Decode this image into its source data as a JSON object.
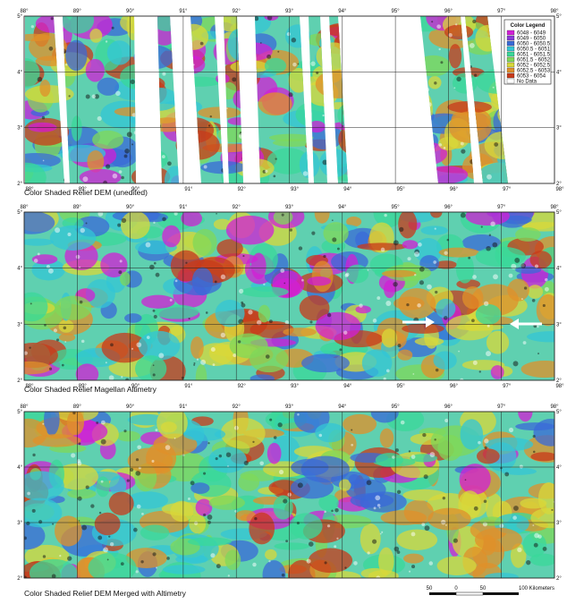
{
  "panels": [
    {
      "caption": "Color Shaded Relief DEM (unedited)",
      "lon_labels": [
        "88°",
        "89°",
        "90°",
        "91°",
        "92°",
        "93°",
        "94°",
        "95°",
        "96°",
        "97°",
        "98°"
      ],
      "lat_labels": [
        "5°",
        "4°",
        "3°",
        "2°"
      ]
    },
    {
      "caption": "Color Shaded Relief Magellan Altimetry",
      "lon_labels": [
        "88°",
        "89°",
        "90°",
        "91°",
        "92°",
        "93°",
        "94°",
        "95°",
        "96°",
        "97°",
        "98°"
      ],
      "lat_labels": [
        "5°",
        "4°",
        "3°",
        "2°"
      ]
    },
    {
      "caption": "Color Shaded Relief DEM Merged with Altimetry",
      "lon_labels": [
        "88°",
        "89°",
        "90°",
        "91°",
        "92°",
        "93°",
        "94°",
        "95°",
        "96°",
        "97°",
        "98°"
      ],
      "lat_labels": [
        "5°",
        "4°",
        "3°",
        "2°"
      ]
    }
  ],
  "legend": {
    "title": "Color Legend",
    "entries": [
      {
        "label": "6048 - 6049",
        "color": "#d21fd6"
      },
      {
        "label": "6049 - 6050",
        "color": "#8a3ad8"
      },
      {
        "label": "6050 - 6050.5",
        "color": "#3a6ad8"
      },
      {
        "label": "6050.5 - 6051",
        "color": "#33c6d6"
      },
      {
        "label": "6051 - 6051.5",
        "color": "#3ad89a"
      },
      {
        "label": "6051.5 - 6052",
        "color": "#7fd85a"
      },
      {
        "label": "6052 - 6052.5",
        "color": "#d8d83a"
      },
      {
        "label": "6052.5 - 6053",
        "color": "#e0902a"
      },
      {
        "label": "6053 - 6054",
        "color": "#c83a1a"
      },
      {
        "label": "No Data",
        "color": "#ffffff"
      }
    ]
  },
  "scale_bar": {
    "labels": [
      "50",
      "0",
      "50",
      "100 Kilometers"
    ]
  }
}
